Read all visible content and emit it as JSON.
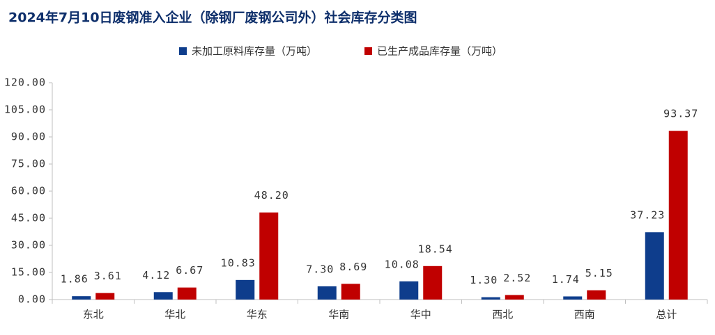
{
  "chart_data": {
    "type": "bar",
    "title": "2024年7月10日废钢准入企业（除钢厂废钢公司外）社会库存分类图",
    "categories": [
      "东北",
      "华北",
      "华东",
      "华南",
      "华中",
      "西北",
      "西南",
      "总计"
    ],
    "series": [
      {
        "name": "未加工原料库存量（万吨）",
        "color": "#0e3d8c",
        "values": [
          1.86,
          4.12,
          10.83,
          7.3,
          10.08,
          1.3,
          1.74,
          37.23
        ],
        "value_labels": [
          "1.86",
          "4.12",
          "10.83",
          "7.30",
          "10.08",
          "1.30",
          "1.74",
          "37.23"
        ]
      },
      {
        "name": "已生产成品库存量（万吨）",
        "color": "#c00000",
        "values": [
          3.61,
          6.67,
          48.2,
          8.69,
          18.54,
          2.52,
          5.15,
          93.37
        ],
        "value_labels": [
          "3.61",
          "6.67",
          "48.20",
          "8.69",
          "18.54",
          "2.52",
          "5.15",
          "93.37"
        ]
      }
    ],
    "ylim": [
      0,
      120
    ],
    "yticks": [
      {
        "value": 0,
        "label": "0.00"
      },
      {
        "value": 15,
        "label": "15.00"
      },
      {
        "value": 30,
        "label": "30.00"
      },
      {
        "value": 45,
        "label": "45.00"
      },
      {
        "value": 60,
        "label": "60.00"
      },
      {
        "value": 75,
        "label": "75.00"
      },
      {
        "value": 90,
        "label": "90.00"
      },
      {
        "value": 105,
        "label": "105.00"
      },
      {
        "value": 120,
        "label": "120.00"
      }
    ],
    "legend": "top"
  }
}
